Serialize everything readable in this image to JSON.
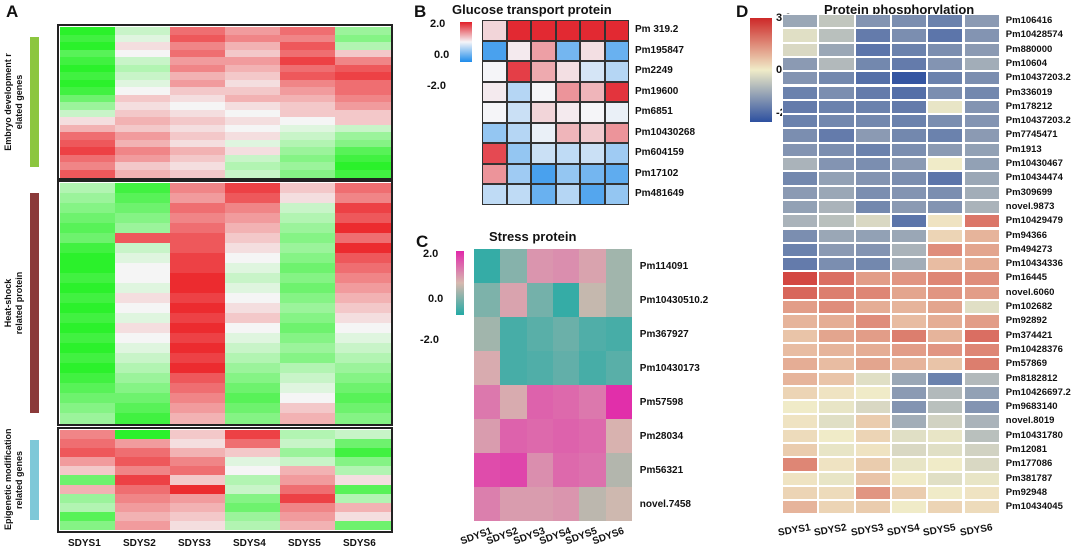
{
  "figure": {
    "panel_a_label": "A",
    "panel_b_label": "B",
    "panel_c_label": "C",
    "panel_d_label": "D"
  },
  "chart_data": [
    {
      "id": "A",
      "type": "heatmap",
      "title": "",
      "columns": [
        "SDYS1",
        "SDYS2",
        "SDYS3",
        "SDYS4",
        "SDYS5",
        "SDYS6"
      ],
      "colormap": "green-white-red",
      "groups": [
        {
          "label_line1": "Embryo development r",
          "label_line2": "elated  genes",
          "color": "#8cc63f",
          "values": [
            [
              -0.9,
              -0.2,
              0.6,
              0.4,
              0.6,
              -0.4
            ],
            [
              -0.8,
              -0.1,
              0.7,
              0.5,
              0.5,
              -0.5
            ],
            [
              -0.9,
              0.1,
              0.5,
              0.3,
              0.7,
              -0.3
            ],
            [
              -0.7,
              0.0,
              0.6,
              0.2,
              0.6,
              0.2
            ],
            [
              -0.8,
              -0.2,
              0.4,
              0.4,
              0.8,
              0.5
            ],
            [
              -0.9,
              -0.3,
              0.5,
              0.3,
              0.6,
              0.7
            ],
            [
              -0.8,
              -0.2,
              0.3,
              0.2,
              0.7,
              0.8
            ],
            [
              -0.9,
              -0.1,
              0.4,
              0.1,
              0.5,
              0.6
            ],
            [
              -0.8,
              0.0,
              0.2,
              0.2,
              0.4,
              0.6
            ],
            [
              -0.6,
              0.2,
              0.1,
              0.3,
              0.3,
              0.5
            ],
            [
              -0.4,
              0.1,
              0.0,
              0.1,
              0.2,
              0.4
            ],
            [
              -0.2,
              0.2,
              0.1,
              0.0,
              0.2,
              0.2
            ],
            [
              0.1,
              0.3,
              0.2,
              0.1,
              0.0,
              0.2
            ],
            [
              0.3,
              0.2,
              0.1,
              0.0,
              -0.1,
              -0.2
            ],
            [
              0.6,
              0.4,
              0.2,
              0.1,
              -0.2,
              -0.4
            ],
            [
              0.7,
              0.3,
              0.1,
              -0.1,
              -0.3,
              -0.5
            ],
            [
              0.8,
              0.5,
              0.3,
              0.1,
              -0.4,
              -0.7
            ],
            [
              0.6,
              0.4,
              0.2,
              -0.2,
              -0.5,
              -0.8
            ],
            [
              0.5,
              0.2,
              0.1,
              -0.3,
              -0.4,
              -0.9
            ],
            [
              0.7,
              0.3,
              0.2,
              -0.2,
              -0.5,
              -0.8
            ]
          ]
        },
        {
          "label_line1": "Heat-shock",
          "label_line2": "related protein",
          "color": "#8b3a3a",
          "values": [
            [
              -0.3,
              -0.8,
              0.5,
              0.8,
              0.2,
              0.6
            ],
            [
              -0.4,
              -0.7,
              0.4,
              0.7,
              0.1,
              0.5
            ],
            [
              -0.5,
              -0.6,
              0.6,
              0.5,
              -0.2,
              0.8
            ],
            [
              -0.6,
              -0.5,
              0.5,
              0.4,
              -0.3,
              0.7
            ],
            [
              -0.7,
              -0.4,
              0.6,
              0.3,
              -0.4,
              0.9
            ],
            [
              -0.6,
              0.7,
              0.7,
              0.2,
              -0.5,
              0.6
            ],
            [
              -0.8,
              -0.2,
              0.7,
              0.1,
              -0.4,
              0.9
            ],
            [
              -0.9,
              -0.1,
              0.8,
              0.0,
              -0.5,
              0.7
            ],
            [
              -0.9,
              0.0,
              0.8,
              -0.1,
              -0.6,
              0.6
            ],
            [
              -0.8,
              0.0,
              0.9,
              -0.2,
              -0.5,
              0.5
            ],
            [
              -0.9,
              -0.1,
              0.9,
              -0.1,
              -0.6,
              0.4
            ],
            [
              -0.8,
              0.1,
              0.8,
              0.0,
              -0.5,
              0.3
            ],
            [
              -0.9,
              0.0,
              0.9,
              0.1,
              -0.4,
              0.2
            ],
            [
              -0.8,
              -0.1,
              0.8,
              0.2,
              -0.5,
              0.1
            ],
            [
              -0.9,
              0.1,
              0.9,
              0.0,
              -0.6,
              0.0
            ],
            [
              -0.8,
              0.0,
              0.8,
              -0.1,
              -0.5,
              -0.1
            ],
            [
              -0.9,
              -0.1,
              0.9,
              -0.2,
              -0.4,
              -0.2
            ],
            [
              -0.8,
              -0.2,
              0.8,
              -0.3,
              -0.5,
              -0.3
            ],
            [
              -0.9,
              -0.3,
              0.9,
              -0.4,
              -0.3,
              -0.4
            ],
            [
              -0.8,
              -0.4,
              0.7,
              -0.5,
              -0.2,
              -0.5
            ],
            [
              -0.7,
              -0.5,
              0.6,
              -0.6,
              -0.1,
              -0.6
            ],
            [
              -0.6,
              -0.6,
              0.5,
              -0.7,
              0.0,
              -0.7
            ],
            [
              -0.5,
              -0.7,
              0.4,
              -0.6,
              0.2,
              -0.6
            ],
            [
              -0.4,
              -0.8,
              0.3,
              -0.5,
              0.3,
              -0.5
            ]
          ]
        },
        {
          "label_line1": "Epigenetic modification",
          "label_line2": "related genes",
          "color": "#7ec8d8",
          "values": [
            [
              0.5,
              -0.9,
              0.2,
              0.8,
              -0.3,
              -0.2
            ],
            [
              0.6,
              0.4,
              0.1,
              0.6,
              -0.2,
              -0.6
            ],
            [
              0.7,
              0.6,
              0.3,
              0.2,
              -0.4,
              -0.8
            ],
            [
              0.4,
              0.7,
              0.5,
              -0.1,
              -0.2,
              -0.5
            ],
            [
              0.2,
              0.5,
              0.6,
              0.0,
              0.3,
              -0.3
            ],
            [
              -0.6,
              0.8,
              0.2,
              -0.3,
              0.4,
              0.1
            ],
            [
              0.3,
              0.6,
              0.9,
              -0.2,
              0.6,
              -0.7
            ],
            [
              -0.4,
              0.5,
              0.4,
              -0.5,
              0.8,
              -0.3
            ],
            [
              -0.3,
              0.4,
              0.3,
              -0.6,
              0.5,
              0.3
            ],
            [
              -0.7,
              0.3,
              0.2,
              -0.4,
              0.4,
              0.1
            ],
            [
              -0.5,
              0.4,
              0.1,
              -0.3,
              0.3,
              -0.6
            ]
          ]
        }
      ]
    },
    {
      "id": "B",
      "type": "heatmap",
      "title": "Glucose transport protein",
      "colormap": "blue-white-red",
      "scale": {
        "max": "2.0",
        "mid": "0.0",
        "min": "-2.0"
      },
      "rows": [
        "Pm 319.2",
        "Pm195847",
        "Pm2249",
        "Pm19600",
        "Pm6851",
        "Pm10430268",
        "Pm604159",
        "Pm17102",
        "Pm481649"
      ],
      "values": [
        [
          0.3,
          1.9,
          1.9,
          1.9,
          1.9,
          1.9
        ],
        [
          -1.6,
          0.1,
          0.8,
          -1.2,
          0.2,
          -1.3
        ],
        [
          0.0,
          1.7,
          0.7,
          0.2,
          -0.3,
          -0.6
        ],
        [
          0.1,
          -0.6,
          0.0,
          0.9,
          0.6,
          1.8
        ],
        [
          0.0,
          -0.4,
          0.3,
          0.1,
          0.0,
          -0.1
        ],
        [
          -0.9,
          -0.6,
          -0.1,
          0.6,
          0.4,
          0.9
        ],
        [
          1.6,
          -0.9,
          -0.4,
          -0.5,
          -0.4,
          -0.8
        ],
        [
          0.9,
          -0.8,
          -1.6,
          -0.9,
          -1.2,
          -1.4
        ],
        [
          -0.5,
          -0.5,
          -1.3,
          -0.6,
          -1.5,
          -0.9
        ]
      ]
    },
    {
      "id": "C",
      "type": "heatmap",
      "title": "Stress protein",
      "colormap": "teal-pink-magenta",
      "scale": {
        "max": "2.0",
        "mid": "0.0",
        "min": "-2.0"
      },
      "rows": [
        "Pm114091",
        "Pm10430510.2",
        "Pm367927",
        "Pm10430173",
        "Pm57598",
        "Pm28034",
        "Pm56321",
        "novel.7458"
      ],
      "columns": [
        "SDYS1",
        "SDYS2",
        "SDYS3",
        "SDYS4",
        "SDYS5",
        "SDYS6"
      ],
      "values": [
        [
          -1.8,
          -0.9,
          0.5,
          0.6,
          0.3,
          -0.6
        ],
        [
          -1.0,
          0.3,
          -1.1,
          -1.8,
          -0.2,
          -0.6
        ],
        [
          -0.6,
          -1.6,
          -1.4,
          -1.2,
          -1.5,
          -1.6
        ],
        [
          0.2,
          -1.6,
          -1.5,
          -1.3,
          -1.6,
          -1.4
        ],
        [
          0.9,
          0.2,
          1.2,
          1.1,
          0.9,
          1.9
        ],
        [
          0.4,
          1.2,
          1.1,
          1.2,
          1.1,
          0.1
        ],
        [
          1.5,
          1.6,
          0.6,
          1.1,
          1.0,
          -0.4
        ],
        [
          0.8,
          0.4,
          0.4,
          0.5,
          -0.3,
          -0.1
        ]
      ]
    },
    {
      "id": "D",
      "type": "heatmap",
      "title": "Protein phosphorylation",
      "colormap": "navy-cream-red",
      "scale": {
        "max": "3.0",
        "mid": "0.0",
        "min": "-2.0"
      },
      "rows": [
        "Pm106416",
        "Pm10428574",
        "Pm880000",
        "Pm10604",
        "Pm10437203.2",
        "Pm336019",
        "Pm178212",
        "Pm10437203.2",
        "Pm7745471",
        "Pm1913",
        "Pm10430467",
        "Pm10434474",
        "Pm309699",
        "novel.9873",
        "Pm10429479",
        "Pm94366",
        "Pm494273",
        "Pm10434336",
        "Pm16445",
        "novel.6060",
        "Pm102682",
        "Pm92892",
        "Pm374421",
        "Pm10428376",
        "Pm57869",
        "Pm8182812",
        "Pm10426697.2",
        "Pm9683140",
        "novel.8019",
        "Pm10431780",
        "Pm12081",
        "Pm177086",
        "Pm381787",
        "Pm92948",
        "Pm10434045"
      ],
      "columns": [
        "SDYS1",
        "SDYS2",
        "SDYS3",
        "SDYS4",
        "SDYS5",
        "SDYS6"
      ],
      "values": [
        [
          -0.6,
          -0.1,
          -0.9,
          -1.0,
          -1.2,
          -0.8
        ],
        [
          0.3,
          -0.2,
          -1.3,
          -1.0,
          -1.4,
          -0.9
        ],
        [
          0.2,
          -0.6,
          -1.4,
          -1.2,
          -1.0,
          -0.8
        ],
        [
          -0.8,
          -0.3,
          -1.1,
          -1.3,
          -0.9,
          -0.5
        ],
        [
          -0.9,
          -1.1,
          -1.5,
          -1.9,
          -1.2,
          -1.0
        ],
        [
          -1.2,
          -1.0,
          -1.3,
          -1.5,
          -1.0,
          -1.1
        ],
        [
          -1.3,
          -1.2,
          -1.2,
          -1.3,
          0.4,
          -0.9
        ],
        [
          -1.2,
          -1.1,
          -1.1,
          -1.2,
          -1.0,
          -0.9
        ],
        [
          -1.0,
          -1.3,
          -0.8,
          -1.1,
          -1.2,
          -0.8
        ],
        [
          -0.9,
          -1.0,
          -1.2,
          -1.0,
          -0.8,
          -0.7
        ],
        [
          -0.4,
          -0.9,
          -1.0,
          -0.8,
          0.5,
          -0.7
        ],
        [
          -1.1,
          -0.7,
          -0.9,
          -1.0,
          -1.4,
          -0.6
        ],
        [
          -0.8,
          -0.6,
          -1.0,
          -0.9,
          -1.0,
          -0.5
        ],
        [
          -0.7,
          -0.4,
          -1.1,
          -0.8,
          -0.9,
          -0.4
        ],
        [
          -0.4,
          -0.2,
          0.2,
          -1.4,
          0.6,
          2.0
        ],
        [
          -1.0,
          -0.6,
          -0.7,
          -0.6,
          0.8,
          1.2
        ],
        [
          -1.2,
          -0.8,
          -0.9,
          -0.4,
          1.7,
          1.4
        ],
        [
          -1.3,
          -1.0,
          -1.1,
          -0.5,
          1.1,
          1.3
        ],
        [
          2.6,
          2.1,
          1.5,
          1.6,
          1.8,
          1.7
        ],
        [
          2.2,
          1.9,
          1.8,
          1.4,
          1.6,
          1.5
        ],
        [
          1.5,
          1.7,
          1.3,
          1.2,
          1.4,
          0.3
        ],
        [
          1.2,
          1.3,
          1.7,
          1.1,
          1.3,
          1.5
        ],
        [
          1.0,
          1.4,
          1.5,
          1.9,
          1.2,
          2.1
        ],
        [
          1.1,
          1.2,
          1.3,
          1.5,
          1.6,
          1.8
        ],
        [
          1.3,
          1.1,
          1.4,
          1.2,
          1.0,
          1.9
        ],
        [
          1.2,
          1.0,
          0.3,
          -0.6,
          -1.2,
          -0.3
        ],
        [
          0.8,
          0.6,
          0.5,
          -0.8,
          -0.3,
          -0.7
        ],
        [
          0.5,
          0.4,
          0.2,
          -0.9,
          -0.2,
          -0.9
        ],
        [
          0.6,
          0.3,
          0.9,
          -0.5,
          0.1,
          -0.4
        ],
        [
          0.7,
          0.5,
          0.8,
          0.3,
          0.4,
          -0.2
        ],
        [
          0.9,
          0.4,
          0.6,
          0.2,
          0.3,
          0.1
        ],
        [
          1.8,
          0.6,
          0.9,
          0.4,
          0.5,
          0.2
        ],
        [
          0.6,
          0.4,
          1.0,
          0.5,
          0.3,
          0.4
        ],
        [
          0.8,
          0.7,
          1.6,
          0.9,
          0.5,
          0.6
        ],
        [
          1.2,
          0.8,
          0.9,
          0.5,
          0.8,
          0.7
        ]
      ]
    }
  ]
}
